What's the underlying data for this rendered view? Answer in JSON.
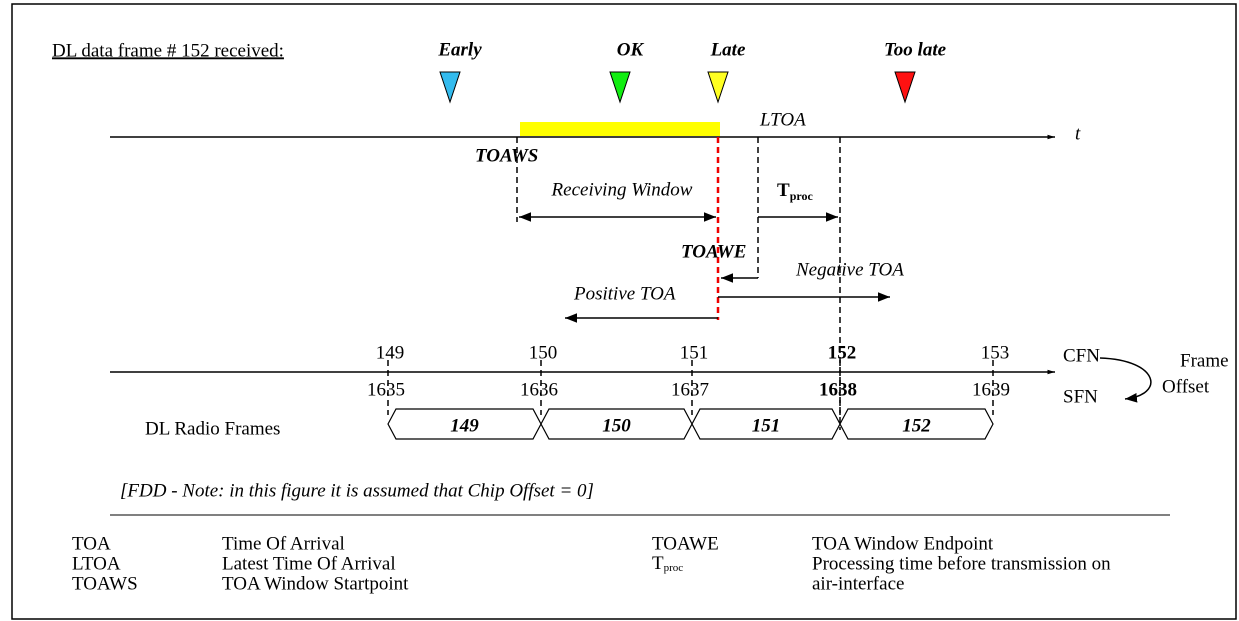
{
  "title": "DL data frame # 152 received:",
  "markers": [
    {
      "label": "Early",
      "color": "#33bbee"
    },
    {
      "label": "OK",
      "color": "#11ee11"
    },
    {
      "label": "Late",
      "color": "#ffff22"
    },
    {
      "label": "Too late",
      "color": "#ff1111"
    }
  ],
  "axis_label": "t",
  "labels": {
    "ltoa": "LTOA",
    "toaws": "TOAWS",
    "receiving_window": "Receiving Window",
    "tproc": {
      "main": "T",
      "sub": "proc"
    },
    "toawe": "TOAWE",
    "negative_toa": "Negative TOA",
    "positive_toa": "Positive TOA"
  },
  "cfn_ticks": [
    149,
    150,
    151,
    152,
    153
  ],
  "sfn_ticks": [
    1635,
    1636,
    1637,
    1638,
    1639
  ],
  "cfn_label": "CFN",
  "sfn_label": "SFN",
  "frame_offset": [
    "Frame",
    "Offset"
  ],
  "radio_frames": {
    "label": "DL Radio Frames",
    "frames": [
      149,
      150,
      151,
      152
    ]
  },
  "note": "[FDD - Note: in this figure it is assumed that Chip Offset = 0]",
  "legend": {
    "left": [
      {
        "term": "TOA",
        "definition": "Time Of Arrival"
      },
      {
        "term": "LTOA",
        "definition": "Latest Time Of Arrival"
      },
      {
        "term": "TOAWS",
        "definition": "TOA Window Startpoint"
      }
    ],
    "right": [
      {
        "term": "TOAWE",
        "definition": [
          "TOA Window Endpoint"
        ]
      },
      {
        "term": {
          "main": "T",
          "sub": "proc"
        },
        "definition": [
          "Processing time before transmission on",
          "air-interface"
        ]
      }
    ]
  }
}
